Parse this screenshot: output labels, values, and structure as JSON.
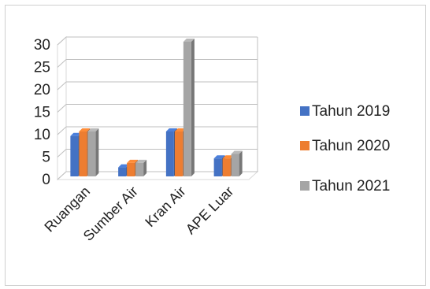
{
  "chart_data": {
    "type": "bar",
    "categories": [
      "Ruangan",
      "Sumber Air",
      "Kran Air",
      "APE Luar"
    ],
    "series": [
      {
        "name": "Tahun 2019",
        "values": [
          9,
          2,
          10,
          4
        ],
        "color": "#4472C4"
      },
      {
        "name": "Tahun 2020",
        "values": [
          10,
          3,
          10,
          4
        ],
        "color": "#ED7D31"
      },
      {
        "name": "Tahun 2021",
        "values": [
          10,
          3,
          30,
          5
        ],
        "color": "#A5A5A5"
      }
    ],
    "yticks": [
      0,
      5,
      10,
      15,
      20,
      25,
      30
    ],
    "ylim": [
      0,
      30
    ],
    "grid": true,
    "legend_position": "right",
    "style": "3d-clustered"
  }
}
